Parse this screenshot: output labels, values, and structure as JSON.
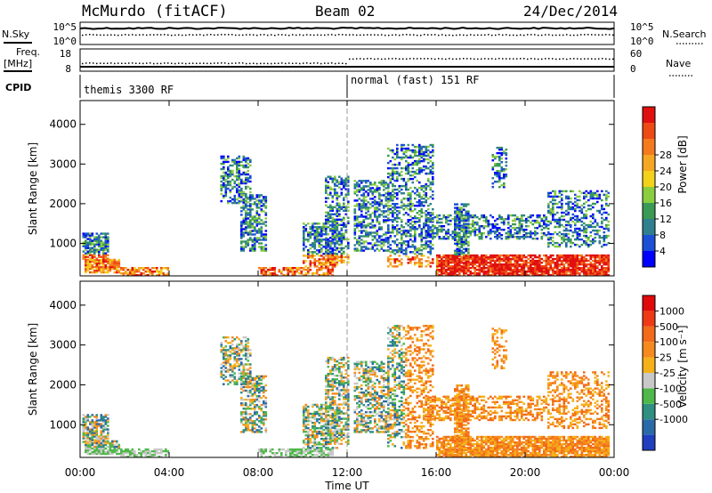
{
  "header": {
    "station": "McMurdo (fitACF)",
    "beam": "Beam 02",
    "date": "24/Dec/2014"
  },
  "top_panels": {
    "nsky_label": "N.Sky",
    "nsearch_label": "N.Search",
    "freq_label_1": "Freq.",
    "freq_label_2": "[MHz]",
    "nave_label": "Nave",
    "cpid_label": "CPID",
    "noise_ticks_left": [
      "10^5",
      "10^0"
    ],
    "noise_ticks_right": [
      "10^5",
      "10^0"
    ],
    "freq_ticks": [
      "18",
      "8"
    ],
    "nave_ticks": [
      "60",
      "0"
    ],
    "cpid_segments": [
      {
        "label": "themis 3300 RF",
        "start_hour": 0,
        "end_hour": 12
      },
      {
        "label": "normal (fast) 151 RF",
        "start_hour": 12,
        "end_hour": 24
      }
    ]
  },
  "chart_data": [
    {
      "type": "heatmap",
      "name": "power",
      "ylabel": "Slant Range [km]",
      "xlabel": "Time UT",
      "x_ticks": [
        "00:00",
        "04:00",
        "08:00",
        "12:00",
        "16:00",
        "20:00",
        "00:00"
      ],
      "y_ticks": [
        "1000",
        "2000",
        "3000",
        "4000"
      ],
      "xlim_hours": [
        0,
        24
      ],
      "ylim_km": [
        180,
        4600
      ],
      "colorbar": {
        "label": "Power [dB]",
        "ticks": [
          "4",
          "8",
          "12",
          "16",
          "20",
          "24",
          "28"
        ],
        "colors": [
          "#0000ff",
          "#1a4fd6",
          "#2f7f8f",
          "#3a9a55",
          "#8acd3e",
          "#f2d21a",
          "#f5a623",
          "#f47a1e",
          "#ee4a14",
          "#e01010"
        ]
      }
    },
    {
      "type": "heatmap",
      "name": "velocity",
      "ylabel": "Slant Range [km]",
      "xlabel": "Time UT",
      "x_ticks": [
        "00:00",
        "04:00",
        "08:00",
        "12:00",
        "16:00",
        "20:00",
        "00:00"
      ],
      "y_ticks": [
        "1000",
        "2000",
        "3000",
        "4000"
      ],
      "xlim_hours": [
        0,
        24
      ],
      "ylim_km": [
        180,
        4600
      ],
      "colorbar": {
        "label": "Velocity [m s⁻¹]",
        "ticks": [
          "1000",
          "500",
          "100",
          "25",
          "-25",
          "-100",
          "-500",
          "-1000"
        ],
        "colors": [
          "#1f3fbf",
          "#2b6aa8",
          "#2f8f80",
          "#4fb84a",
          "#c8c8c8",
          "#f5b01a",
          "#f58a1e",
          "#f26a1a",
          "#ee3a14",
          "#e00a0a"
        ]
      }
    }
  ]
}
